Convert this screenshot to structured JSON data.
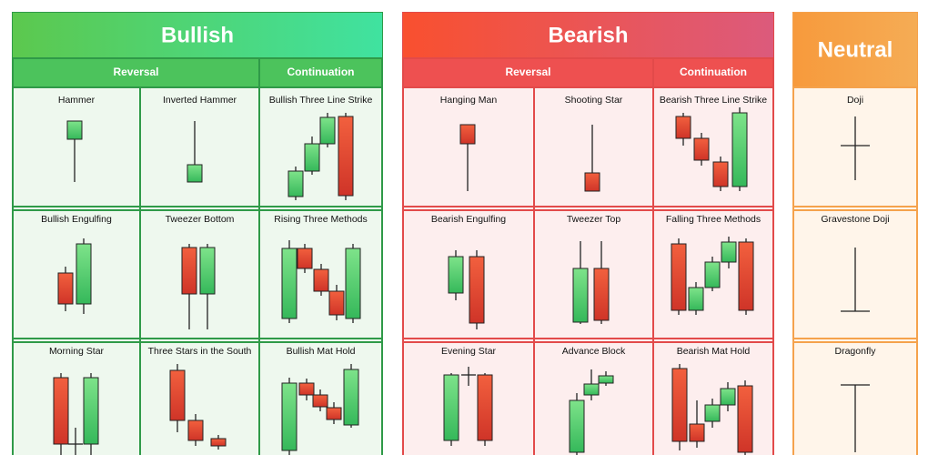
{
  "sections": [
    {
      "title": "Bullish",
      "groups": [
        {
          "label": "Reversal"
        },
        {
          "label": "Continuation"
        }
      ],
      "rows": [
        [
          "Hammer",
          "Inverted Hammer",
          "Bullish Three Line Strike"
        ],
        [
          "Bullish Engulfing",
          "Tweezer Bottom",
          "Rising Three Methods"
        ],
        [
          "Morning Star",
          "Three Stars in the South",
          "Bullish Mat Hold"
        ]
      ]
    },
    {
      "title": "Bearish",
      "groups": [
        {
          "label": "Reversal"
        },
        {
          "label": "Continuation"
        }
      ],
      "rows": [
        [
          "Hanging Man",
          "Shooting Star",
          "Bearish Three Line Strike"
        ],
        [
          "Bearish Engulfing",
          "Tweezer Top",
          "Falling Three Methods"
        ],
        [
          "Evening Star",
          "Advance Block",
          "Bearish Mat Hold"
        ]
      ]
    },
    {
      "title": "Neutral",
      "rows": [
        [
          "Doji"
        ],
        [
          "Gravestone Doji"
        ],
        [
          "Dragonfly"
        ]
      ]
    }
  ]
}
